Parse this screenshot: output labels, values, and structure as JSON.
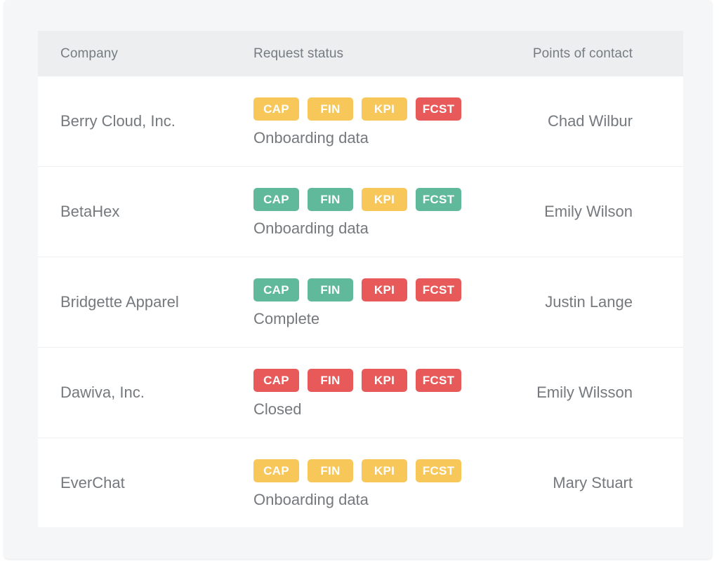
{
  "colors": {
    "yellow": "#f7c75a",
    "green": "#5fb99a",
    "red": "#e85a5a"
  },
  "header": {
    "company": "Company",
    "status": "Request status",
    "contact": "Points of contact"
  },
  "rows": [
    {
      "company": "Berry Cloud, Inc.",
      "badges": [
        {
          "label": "CAP",
          "color": "yellow"
        },
        {
          "label": "FIN",
          "color": "yellow"
        },
        {
          "label": "KPI",
          "color": "yellow"
        },
        {
          "label": "FCST",
          "color": "red"
        }
      ],
      "status": "Onboarding data",
      "contact": "Chad Wilbur"
    },
    {
      "company": "BetaHex",
      "badges": [
        {
          "label": "CAP",
          "color": "green"
        },
        {
          "label": "FIN",
          "color": "green"
        },
        {
          "label": "KPI",
          "color": "yellow"
        },
        {
          "label": "FCST",
          "color": "green"
        }
      ],
      "status": "Onboarding data",
      "contact": "Emily Wilson"
    },
    {
      "company": "Bridgette Apparel",
      "badges": [
        {
          "label": "CAP",
          "color": "green"
        },
        {
          "label": "FIN",
          "color": "green"
        },
        {
          "label": "KPI",
          "color": "red"
        },
        {
          "label": "FCST",
          "color": "red"
        }
      ],
      "status": "Complete",
      "contact": "Justin Lange"
    },
    {
      "company": "Dawiva, Inc.",
      "badges": [
        {
          "label": "CAP",
          "color": "red"
        },
        {
          "label": "FIN",
          "color": "red"
        },
        {
          "label": "KPI",
          "color": "red"
        },
        {
          "label": "FCST",
          "color": "red"
        }
      ],
      "status": "Closed",
      "contact": "Emily Wilsson"
    },
    {
      "company": "EverChat",
      "badges": [
        {
          "label": "CAP",
          "color": "yellow"
        },
        {
          "label": "FIN",
          "color": "yellow"
        },
        {
          "label": "KPI",
          "color": "yellow"
        },
        {
          "label": "FCST",
          "color": "yellow"
        }
      ],
      "status": "Onboarding data",
      "contact": "Mary Stuart"
    }
  ]
}
